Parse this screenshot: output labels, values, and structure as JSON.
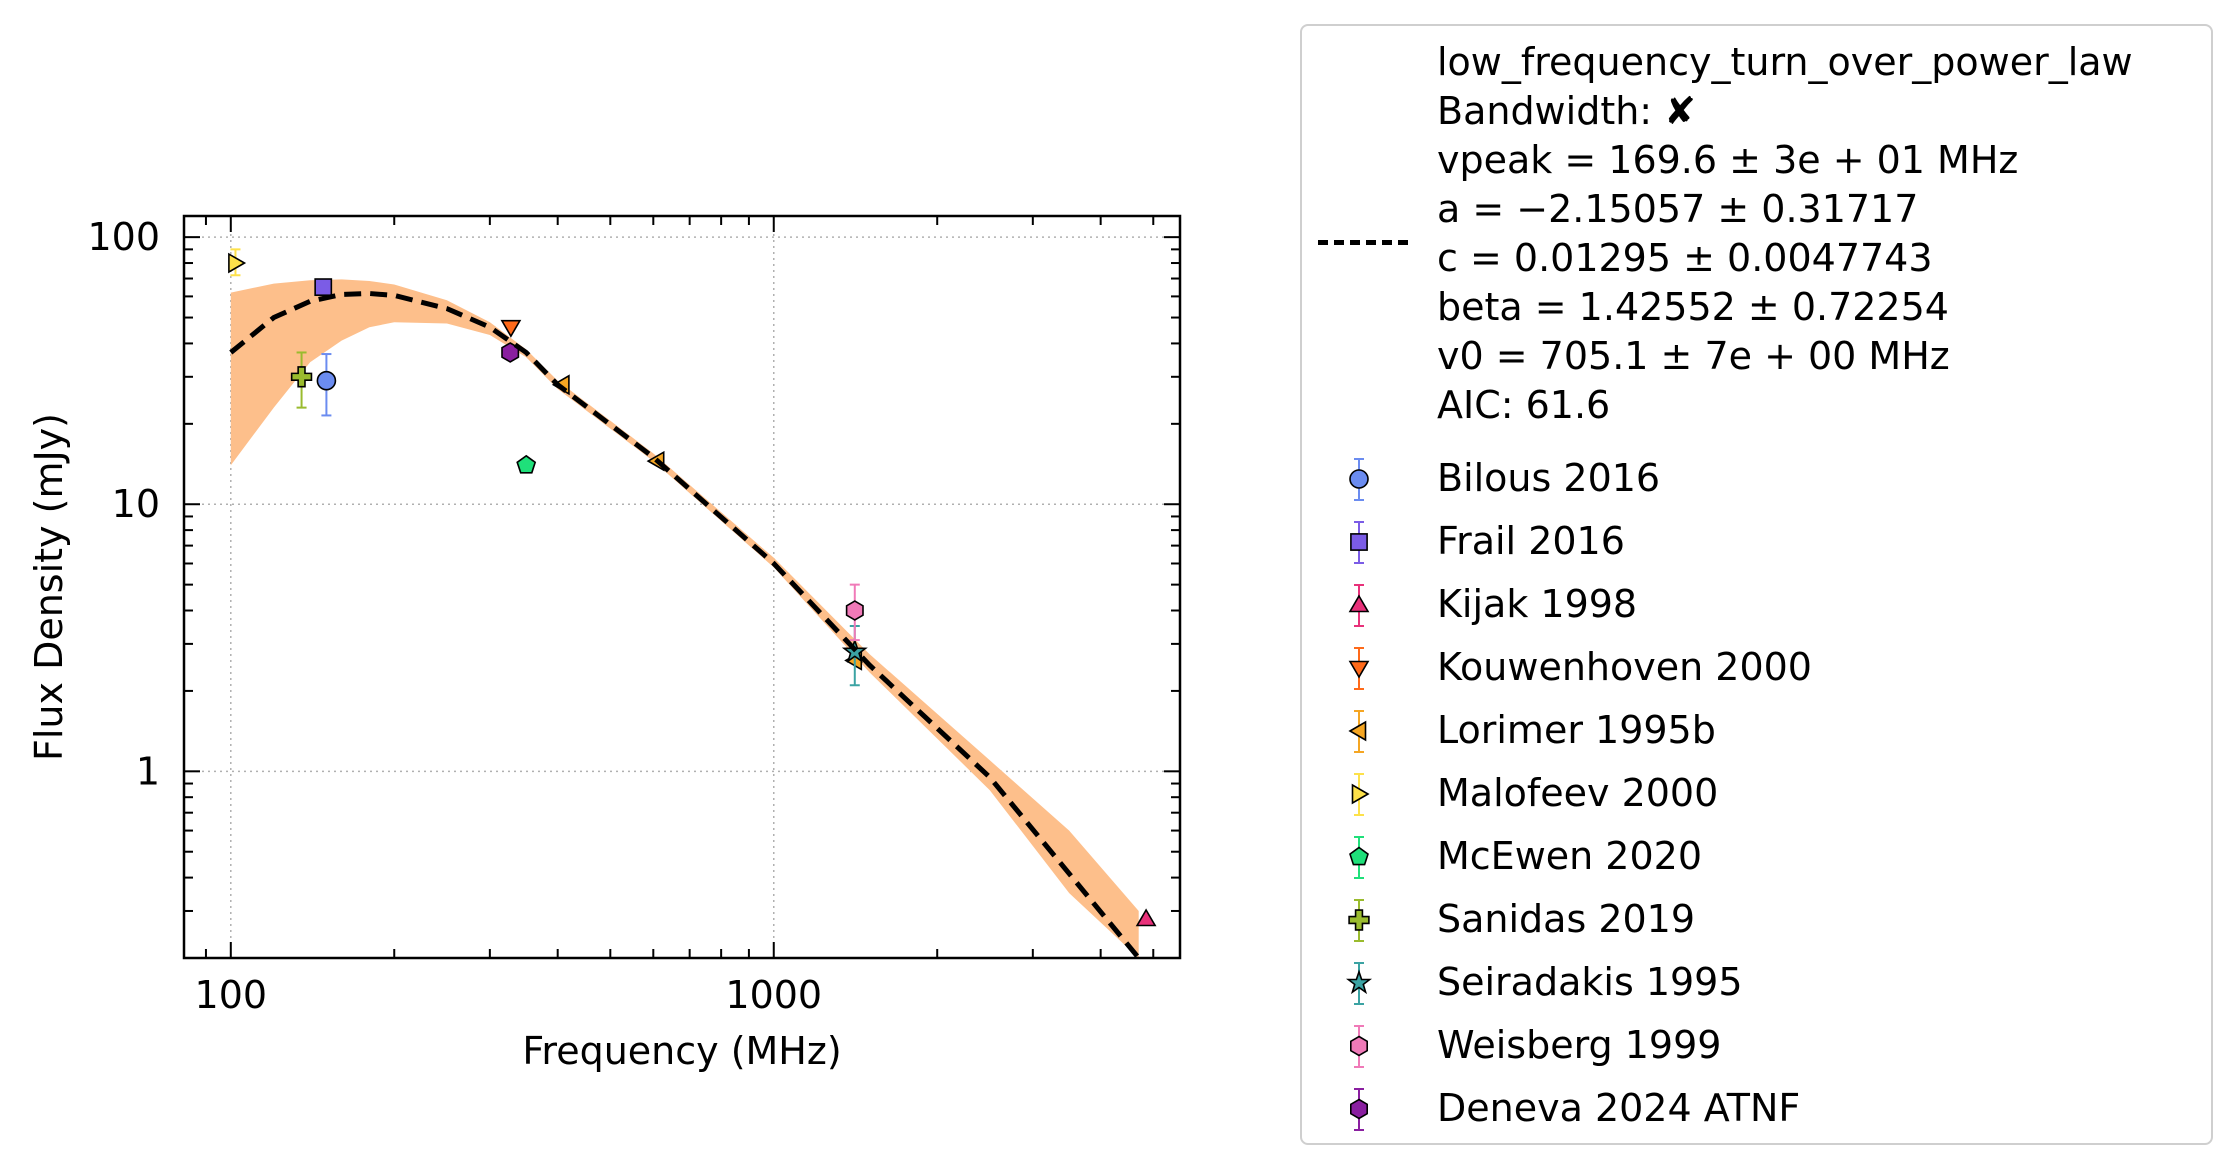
{
  "chart_data": {
    "type": "scatter",
    "title": "",
    "xlabel": "Frequency (MHz)",
    "ylabel": "Flux Density (mJy)",
    "xscale": "log",
    "yscale": "log",
    "xlim": [
      82,
      5600
    ],
    "ylim": [
      0.2,
      120
    ],
    "xticks": [
      {
        "value": 100,
        "label": "100"
      },
      {
        "value": 1000,
        "label": "1000"
      }
    ],
    "yticks": [
      {
        "value": 1,
        "label": "1"
      },
      {
        "value": 10,
        "label": "10"
      },
      {
        "value": 100,
        "label": "100"
      }
    ],
    "grid": true,
    "legend_placement": "outside right",
    "fit": {
      "model": "low_frequency_turn_over_power_law",
      "lines": [
        "low_frequency_turn_over_power_law",
        "Bandwidth: ✘",
        "vpeak = 169.6 ± 3e + 01 MHz",
        "a = −2.15057 ± 0.31717",
        "c = 0.01295 ± 0.0047743",
        "beta = 1.42552 ± 0.72254",
        "v0 = 705.1 ± 7e + 00 MHz",
        "AIC: 61.6"
      ],
      "curve": [
        [
          100,
          37
        ],
        [
          120,
          50
        ],
        [
          140,
          57.5
        ],
        [
          160,
          61
        ],
        [
          180,
          61.5
        ],
        [
          200,
          60.5
        ],
        [
          250,
          54
        ],
        [
          300,
          46
        ],
        [
          350,
          37
        ],
        [
          400,
          28
        ],
        [
          600,
          15
        ],
        [
          1000,
          6
        ],
        [
          1500,
          2.5
        ],
        [
          2500,
          0.95
        ],
        [
          4700,
          0.2
        ]
      ],
      "band_upper": [
        [
          100,
          62
        ],
        [
          120,
          67
        ],
        [
          140,
          69
        ],
        [
          160,
          69.5
        ],
        [
          180,
          68.5
        ],
        [
          200,
          66.5
        ],
        [
          250,
          58
        ],
        [
          300,
          48
        ],
        [
          350,
          38
        ],
        [
          400,
          29
        ],
        [
          600,
          15.5
        ],
        [
          1000,
          6.3
        ],
        [
          1500,
          2.75
        ],
        [
          2500,
          1.1
        ],
        [
          3500,
          0.6
        ],
        [
          4700,
          0.3
        ]
      ],
      "band_lower": [
        [
          4700,
          0.2
        ],
        [
          3500,
          0.35
        ],
        [
          2500,
          0.85
        ],
        [
          1500,
          2.35
        ],
        [
          1000,
          5.8
        ],
        [
          600,
          14.5
        ],
        [
          400,
          27
        ],
        [
          350,
          35.5
        ],
        [
          300,
          43
        ],
        [
          250,
          47.5
        ],
        [
          200,
          48
        ],
        [
          180,
          46
        ],
        [
          160,
          41
        ],
        [
          140,
          34
        ],
        [
          120,
          23
        ],
        [
          100,
          14
        ]
      ],
      "line_color": "#000000",
      "band_color": "#fdbf8b"
    },
    "series": [
      {
        "name": "Bilous 2016",
        "marker": "circle",
        "color": "#6b8cf0",
        "points": [
          {
            "x": 150,
            "y": 29,
            "yerr": [
              21.5,
              36.5
            ]
          }
        ]
      },
      {
        "name": "Frail 2016",
        "marker": "square",
        "color": "#7b5ce6",
        "points": [
          {
            "x": 148,
            "y": 65,
            "yerr": [
              61,
              69
            ]
          }
        ]
      },
      {
        "name": "Kijak 1998",
        "marker": "triangle-up",
        "color": "#e8317a",
        "points": [
          {
            "x": 4850,
            "y": 0.28,
            "yerr": null
          }
        ]
      },
      {
        "name": "Kouwenhoven 2000",
        "marker": "triangle-down",
        "color": "#ff6a1a",
        "points": [
          {
            "x": 328,
            "y": 46,
            "yerr": null
          }
        ]
      },
      {
        "name": "Lorimer 1995b",
        "marker": "triangle-left",
        "color": "#f5a623",
        "points": [
          {
            "x": 408,
            "y": 28,
            "yerr": null
          },
          {
            "x": 610,
            "y": 14.5,
            "yerr": null
          },
          {
            "x": 1410,
            "y": 2.6,
            "yerr": null
          }
        ]
      },
      {
        "name": "Malofeev 2000",
        "marker": "triangle-right",
        "color": "#fde14a",
        "points": [
          {
            "x": 102,
            "y": 80,
            "yerr": [
              72,
              90
            ]
          }
        ]
      },
      {
        "name": "McEwen 2020",
        "marker": "pentagon",
        "color": "#1fe07a",
        "points": [
          {
            "x": 350,
            "y": 14,
            "yerr": null
          }
        ]
      },
      {
        "name": "Sanidas 2019",
        "marker": "plus",
        "color": "#9abb2e",
        "points": [
          {
            "x": 135,
            "y": 30,
            "yerr": [
              23,
              37
            ]
          }
        ]
      },
      {
        "name": "Seiradakis 1995",
        "marker": "star",
        "color": "#3ba3a3",
        "points": [
          {
            "x": 1410,
            "y": 2.8,
            "yerr": [
              2.1,
              3.5
            ]
          }
        ]
      },
      {
        "name": "Weisberg 1999",
        "marker": "hexagon",
        "color": "#f07ab8",
        "points": [
          {
            "x": 1410,
            "y": 4,
            "yerr": [
              3.1,
              5
            ]
          }
        ]
      },
      {
        "name": "Deneva 2024 ATNF",
        "marker": "hexagon",
        "color": "#8a1fa0",
        "points": [
          {
            "x": 327,
            "y": 37,
            "yerr": null
          }
        ]
      }
    ]
  }
}
